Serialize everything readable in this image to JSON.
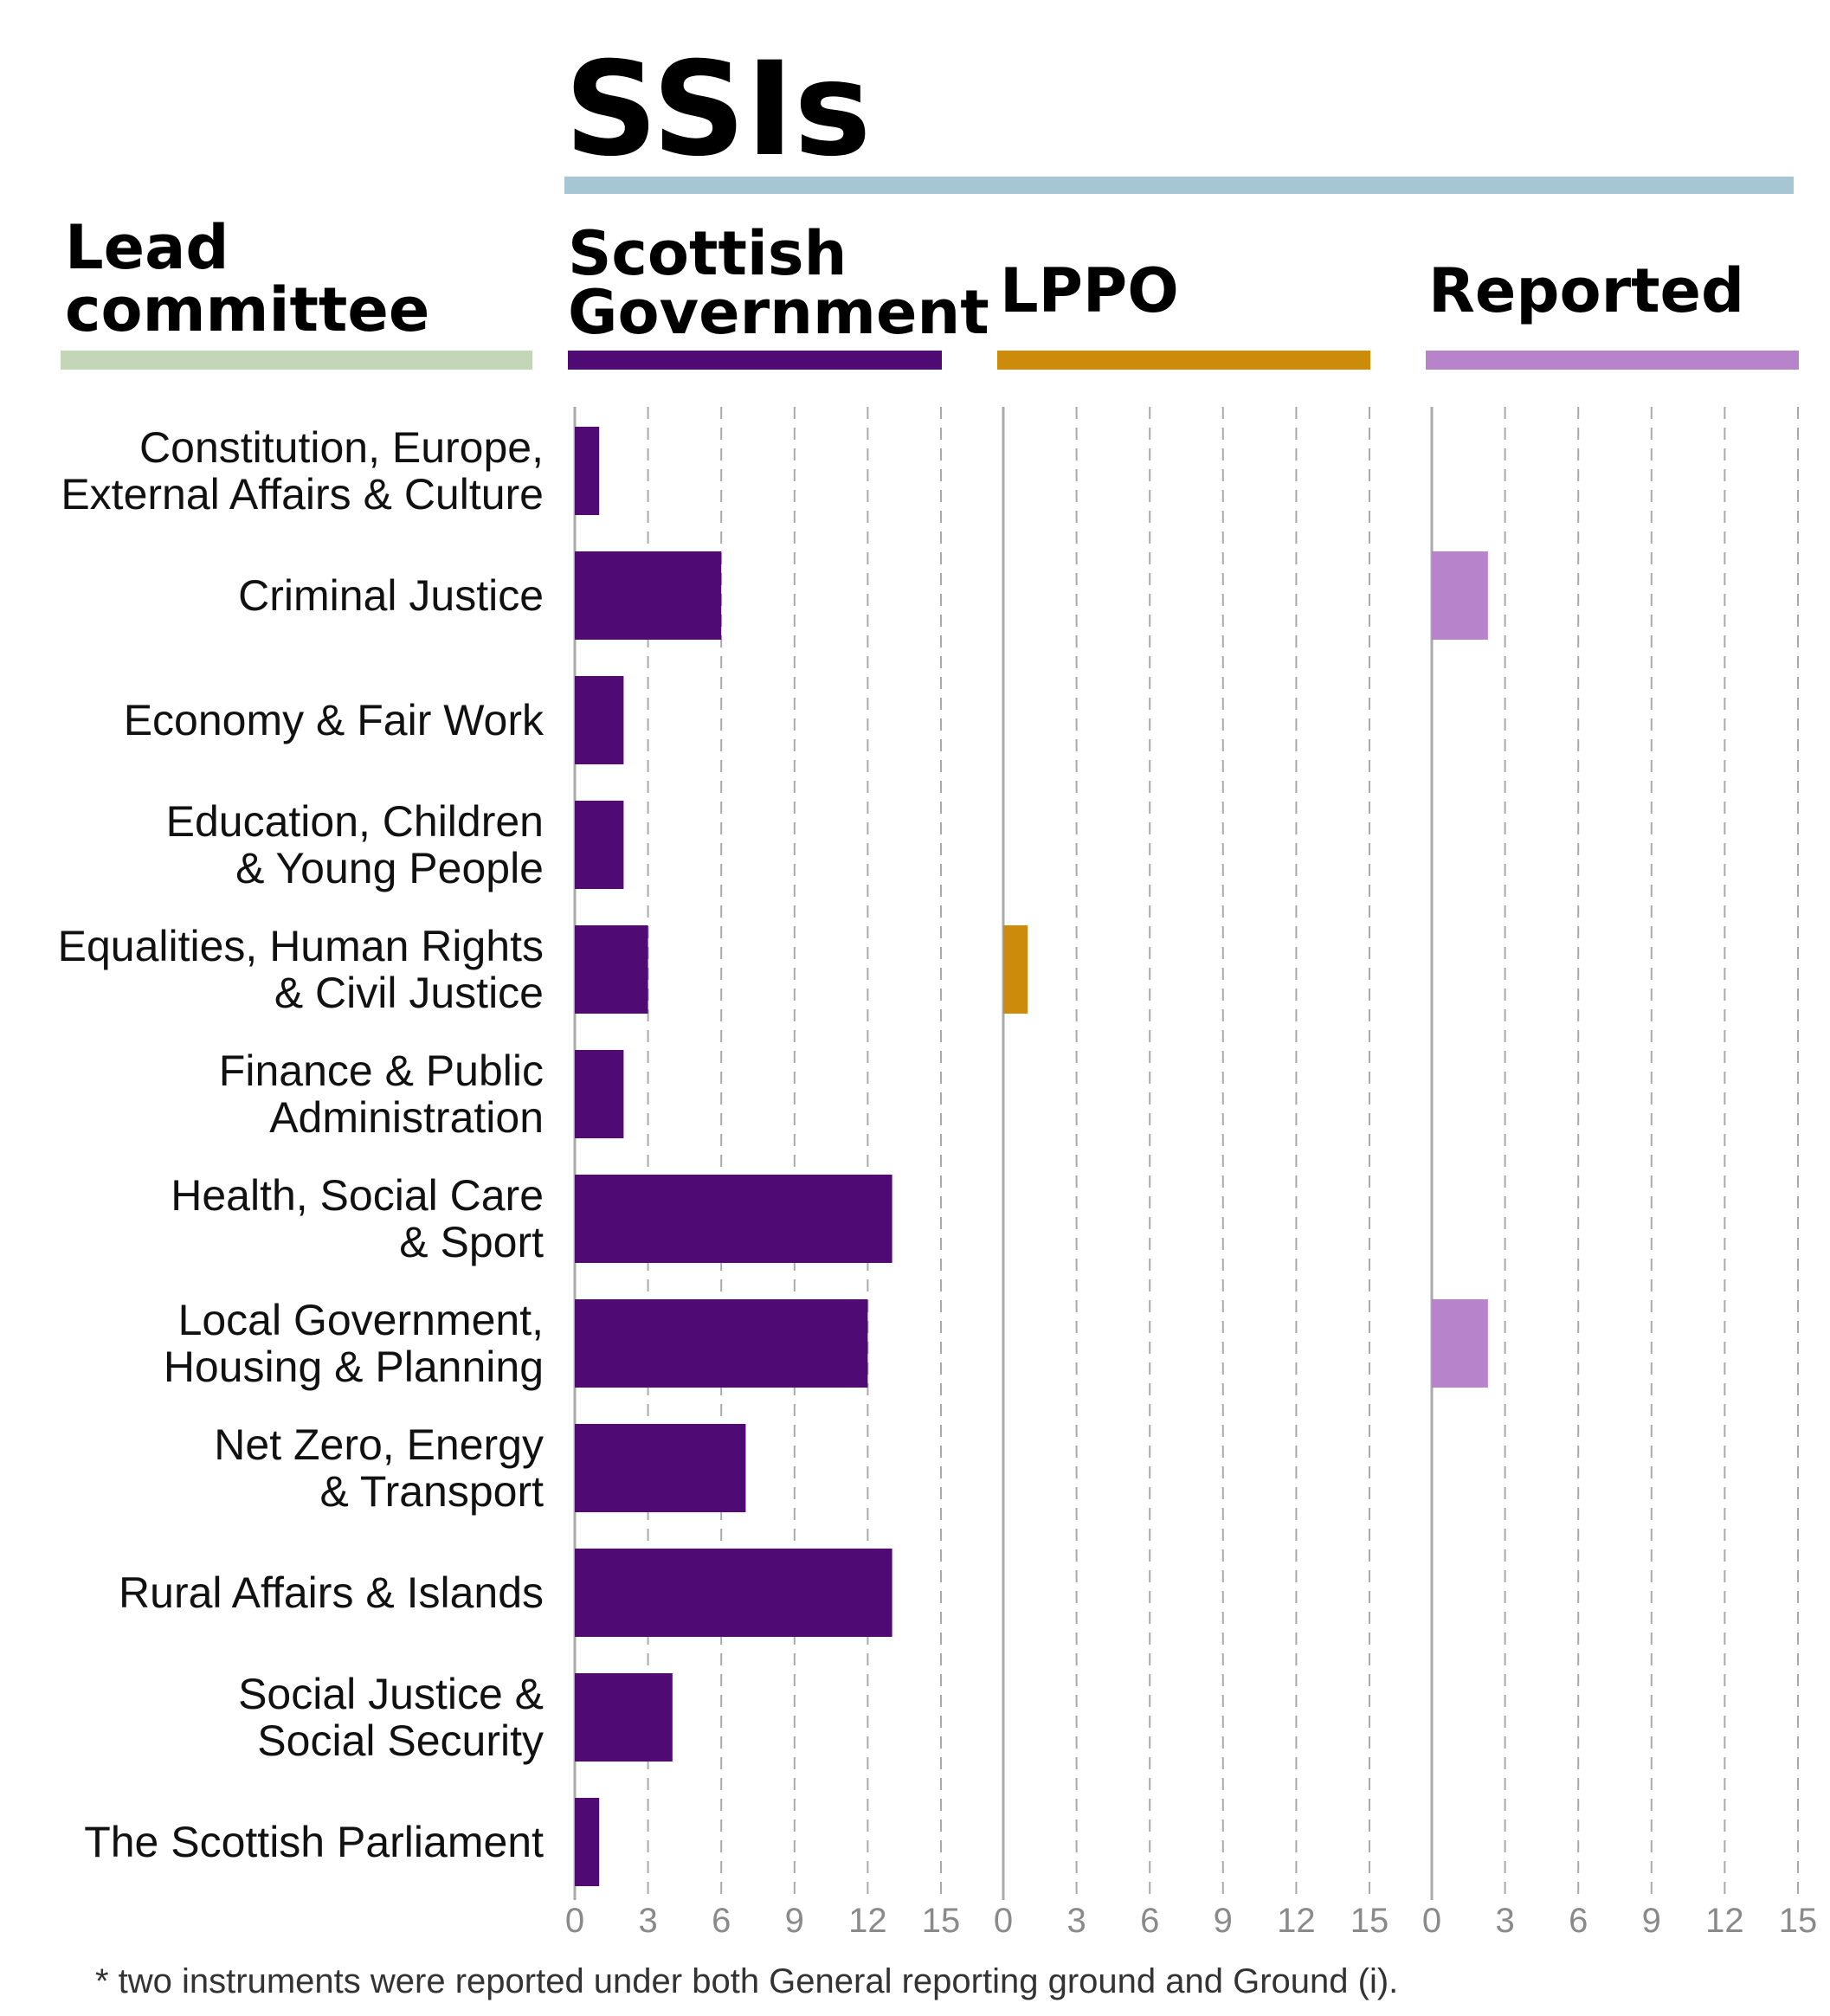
{
  "title": "SSIs",
  "footnote": "* two instruments were reported under both General reporting ground and Ground (i).",
  "colors": {
    "title_rule": "#a7c6d4",
    "lead_rule": "#c3d6b8",
    "scottish_government": "#4f0a73",
    "lppo": "#cc8b0a",
    "reported": "#b784cc",
    "axis": "#aaaaaa",
    "grid": "#aaaaaa"
  },
  "chart_data": {
    "type": "bar",
    "orientation": "horizontal",
    "title": "SSIs",
    "row_header": [
      "Lead",
      "committee"
    ],
    "categories": [
      [
        "Constitution, Europe,",
        "External Affairs & Culture"
      ],
      [
        "Criminal Justice"
      ],
      [
        "Economy & Fair Work"
      ],
      [
        "Education, Children",
        "& Young People"
      ],
      [
        "Equalities, Human Rights",
        "& Civil Justice"
      ],
      [
        "Finance & Public",
        "Administration"
      ],
      [
        "Health, Social Care",
        "& Sport"
      ],
      [
        "Local Government,",
        "Housing & Planning"
      ],
      [
        "Net Zero, Energy",
        "& Transport"
      ],
      [
        "Rural Affairs & Islands"
      ],
      [
        "Social Justice &",
        "Social Security"
      ],
      [
        "The Scottish Parliament"
      ]
    ],
    "xlim": [
      0,
      15
    ],
    "ticks": [
      "0",
      "3",
      "6",
      "9",
      "12",
      "15"
    ],
    "grid": true,
    "series": [
      {
        "name": [
          "Scottish",
          "Government"
        ],
        "color": "#4f0a73",
        "values": [
          1,
          6,
          2,
          2,
          3,
          2,
          13,
          12,
          7,
          13,
          4,
          1
        ]
      },
      {
        "name": [
          "LPPO"
        ],
        "color": "#cc8b0a",
        "values": [
          0,
          0,
          0,
          0,
          1,
          0,
          0,
          0,
          0,
          0,
          0,
          0
        ]
      },
      {
        "name": [
          "Reported"
        ],
        "color": "#b784cc",
        "values": [
          0,
          2.3,
          0,
          0,
          0,
          0,
          0,
          2.3,
          0,
          0,
          0,
          0
        ]
      }
    ]
  }
}
